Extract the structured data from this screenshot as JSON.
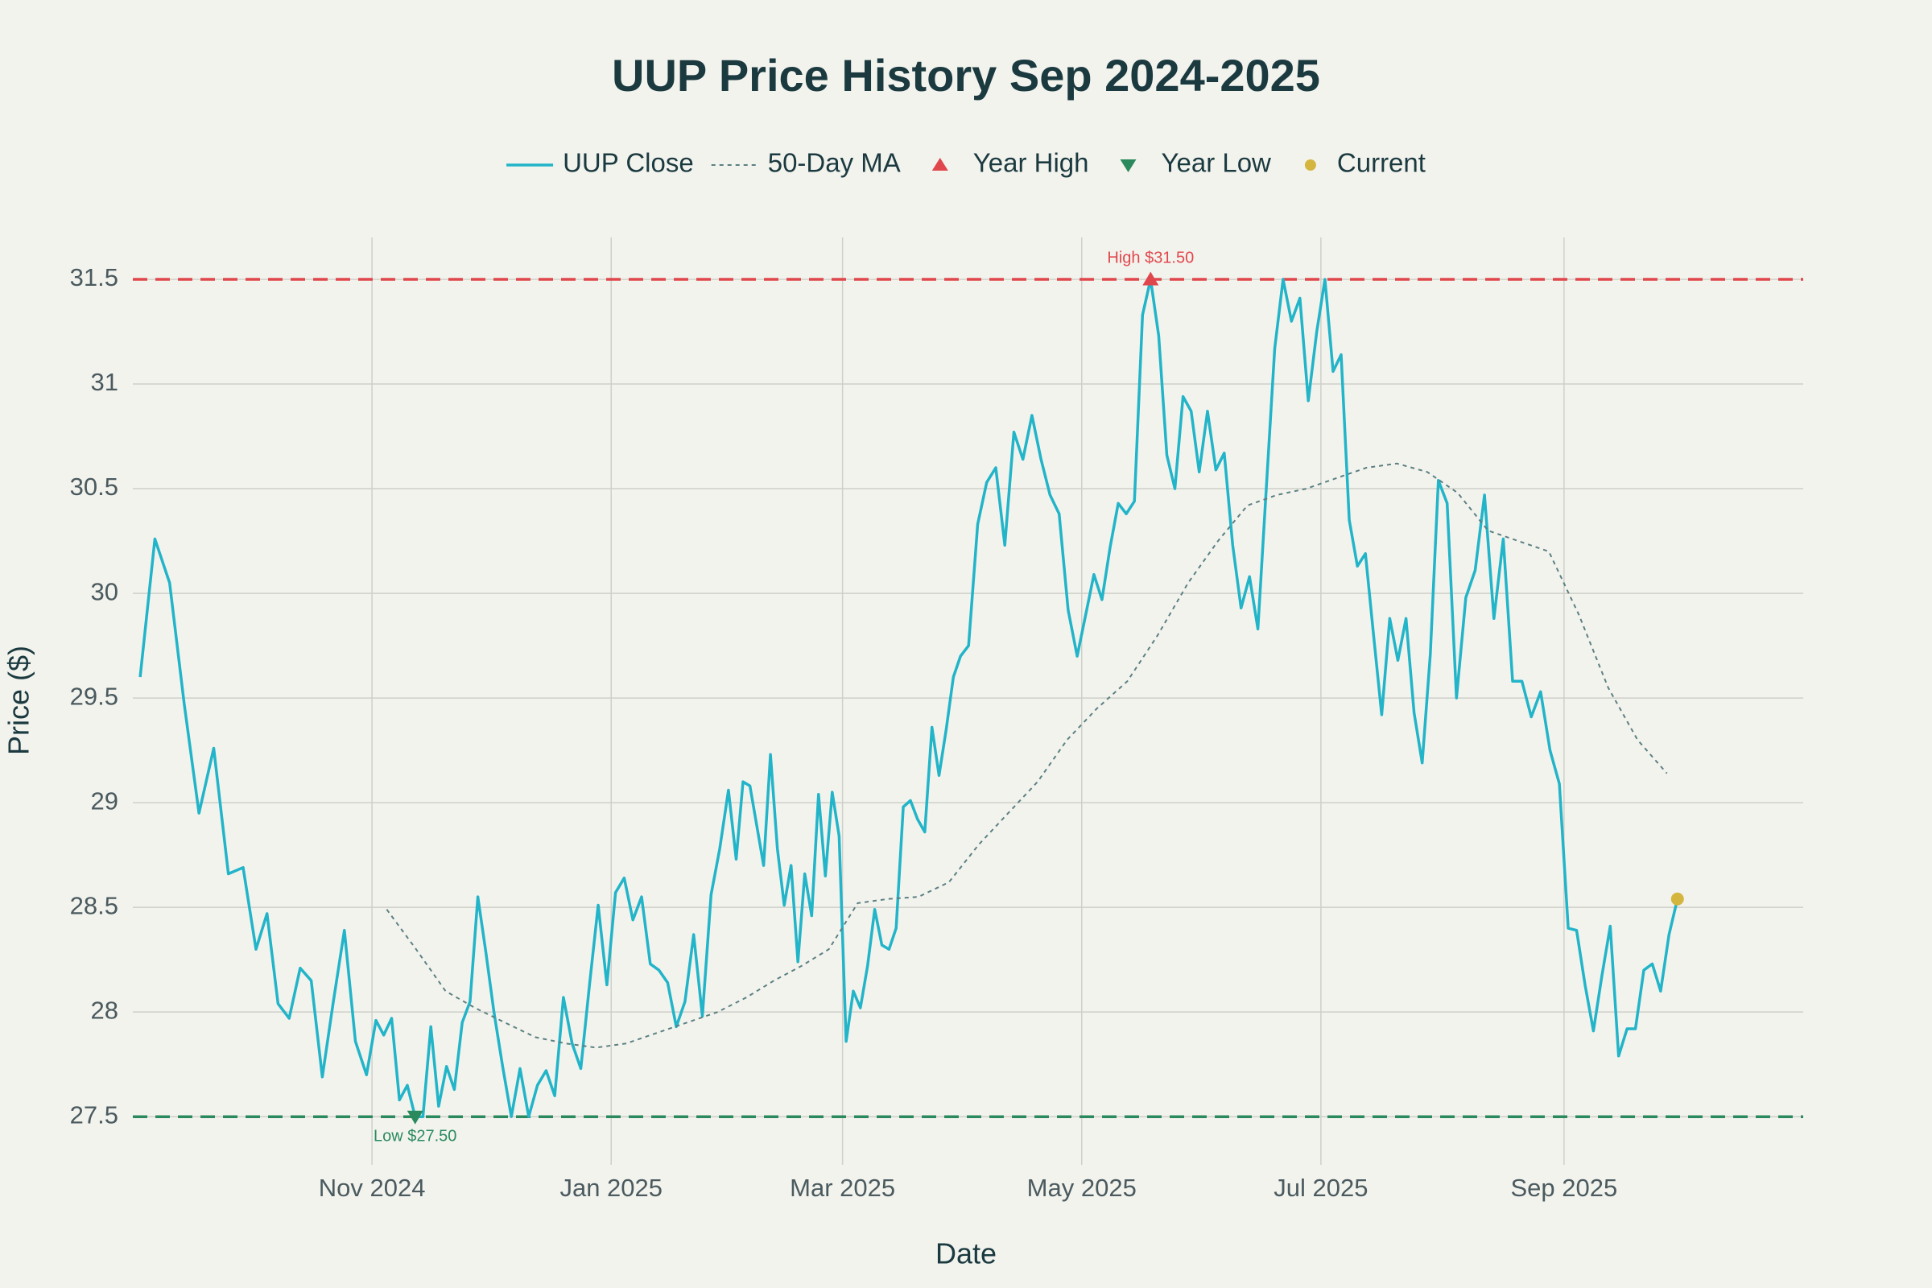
{
  "chart_data": {
    "type": "line",
    "title": "UUP Price History Sep 2024-2025",
    "xlabel": "Date",
    "ylabel": "Price ($)",
    "xlim": [
      "2024-09",
      "2025-11"
    ],
    "xticks": [
      {
        "value": "2024-11",
        "label": "Nov 2024"
      },
      {
        "value": "2025-01",
        "label": "Jan 2025"
      },
      {
        "value": "2025-03",
        "label": "Mar 2025"
      },
      {
        "value": "2025-05",
        "label": "May 2025"
      },
      {
        "value": "2025-07",
        "label": "Jul 2025"
      },
      {
        "value": "2025-09",
        "label": "Sep 2025"
      }
    ],
    "ylim": [
      27.27,
      31.7
    ],
    "yticks": [
      27.5,
      28,
      28.5,
      29,
      29.5,
      30,
      30.5,
      31,
      31.5
    ],
    "grid": true,
    "legend": "top",
    "reference_lines": [
      {
        "value": 31.5,
        "color": "#e0474c"
      },
      {
        "value": 27.5,
        "color": "#2a8a5e"
      }
    ],
    "series": [
      {
        "name": "UUP Close",
        "color": "#22b4c8",
        "style": "solid",
        "x": [
          "2024-09",
          "2024-10",
          "2024-11",
          "2024-12",
          "2025-01",
          "2025-02",
          "2025-03",
          "2025-04",
          "2025-05",
          "2025-06",
          "2025-07",
          "2025-08",
          "2025-09"
        ],
        "values": [
          [
            29.6,
            30.26,
            30.05,
            29.47,
            28.95,
            29.26,
            28.66,
            28.69
          ],
          [
            28.3,
            28.47,
            28.04,
            27.97,
            28.21,
            28.15,
            27.69,
            28.05,
            28.39,
            27.86,
            27.7
          ],
          [
            27.96,
            27.89,
            27.97,
            27.58,
            27.65,
            27.5,
            27.5,
            27.93,
            27.55,
            27.74,
            27.63,
            27.95,
            28.05,
            28.55,
            28.29
          ],
          [
            28.0,
            27.74,
            27.5,
            27.73,
            27.5,
            27.65,
            27.72,
            27.6,
            28.07,
            27.85,
            27.73,
            28.13,
            28.51,
            28.13
          ],
          [
            28.57,
            28.64,
            28.44,
            28.55,
            28.23,
            28.2,
            28.14,
            27.93,
            28.05,
            28.37,
            27.98,
            28.56,
            28.78,
            29.06
          ],
          [
            28.73,
            29.1,
            29.08,
            28.89,
            28.7,
            29.23,
            28.78,
            28.51,
            28.7,
            28.24,
            28.66,
            28.46,
            29.04,
            28.65,
            29.05,
            28.84
          ],
          [
            27.86,
            28.1,
            28.02,
            28.22,
            28.49,
            28.32,
            28.3,
            28.4,
            28.98,
            29.01,
            28.92,
            28.86,
            29.36,
            29.13,
            29.35,
            29.6,
            29.7
          ],
          [
            29.75,
            30.33,
            30.53,
            30.6,
            30.23,
            30.77,
            30.64,
            30.85,
            30.64,
            30.47,
            30.38,
            29.92,
            29.7
          ],
          [
            29.9,
            30.09,
            29.97,
            30.22,
            30.43,
            30.38,
            30.44,
            31.33,
            31.5,
            31.23,
            30.66,
            30.5,
            30.94,
            30.87,
            30.58
          ],
          [
            30.87,
            30.59,
            30.67,
            30.23,
            29.93,
            30.08,
            29.83,
            30.5,
            31.17,
            31.5,
            31.3,
            31.41,
            30.92,
            31.25
          ],
          [
            31.5,
            31.06,
            31.14,
            30.35,
            30.13,
            30.19,
            29.8,
            29.42,
            29.88,
            29.68,
            29.88,
            29.43,
            29.19,
            29.71,
            30.54
          ],
          [
            30.43,
            29.5,
            29.98,
            30.11,
            30.47,
            29.88,
            30.26,
            29.58,
            29.58,
            29.41,
            29.53,
            29.25,
            29.09
          ],
          [
            28.4,
            28.39,
            28.13,
            27.91,
            28.17,
            28.41,
            27.79,
            27.92,
            27.92,
            28.2,
            28.23,
            28.1,
            28.37,
            28.54
          ]
        ]
      },
      {
        "name": "50-Day MA",
        "color": "#5b8082",
        "style": "dashed",
        "x": [
          "2024-11",
          "2024-12",
          "2025-01",
          "2025-02",
          "2025-03",
          "2025-04",
          "2025-05",
          "2025-06",
          "2025-07",
          "2025-08",
          "2025-09"
        ],
        "values": [
          [
            28.49,
            28.3,
            28.1,
            28.02
          ],
          [
            27.95,
            27.88,
            27.85,
            27.83
          ],
          [
            27.85,
            27.9,
            27.95,
            28.0
          ],
          [
            28.07,
            28.15,
            28.22,
            28.3
          ],
          [
            28.52,
            28.54,
            28.55,
            28.62
          ],
          [
            28.8,
            28.95,
            29.1,
            29.3
          ],
          [
            29.45,
            29.58,
            29.8,
            30.05
          ],
          [
            30.25,
            30.42,
            30.47,
            30.5
          ],
          [
            30.55,
            30.6,
            30.62,
            30.58
          ],
          [
            30.48,
            30.3,
            30.25,
            30.2
          ],
          [
            29.9,
            29.55,
            29.3,
            29.14
          ]
        ]
      },
      {
        "name": "Year High",
        "color": "#e0474c",
        "style": "triangle-up",
        "label": "High $31.50",
        "x": [
          "2025-05"
        ],
        "values": [
          [
            31.5
          ]
        ]
      },
      {
        "name": "Year Low",
        "color": "#2a8a5e",
        "style": "triangle-down",
        "label": "Low $27.50",
        "x": [
          "2024-11"
        ],
        "values": [
          [
            27.5
          ]
        ]
      },
      {
        "name": "Current",
        "color": "#d4b63f",
        "style": "dot",
        "x": [
          "2025-09"
        ],
        "values": [
          [
            28.54
          ]
        ]
      }
    ]
  }
}
